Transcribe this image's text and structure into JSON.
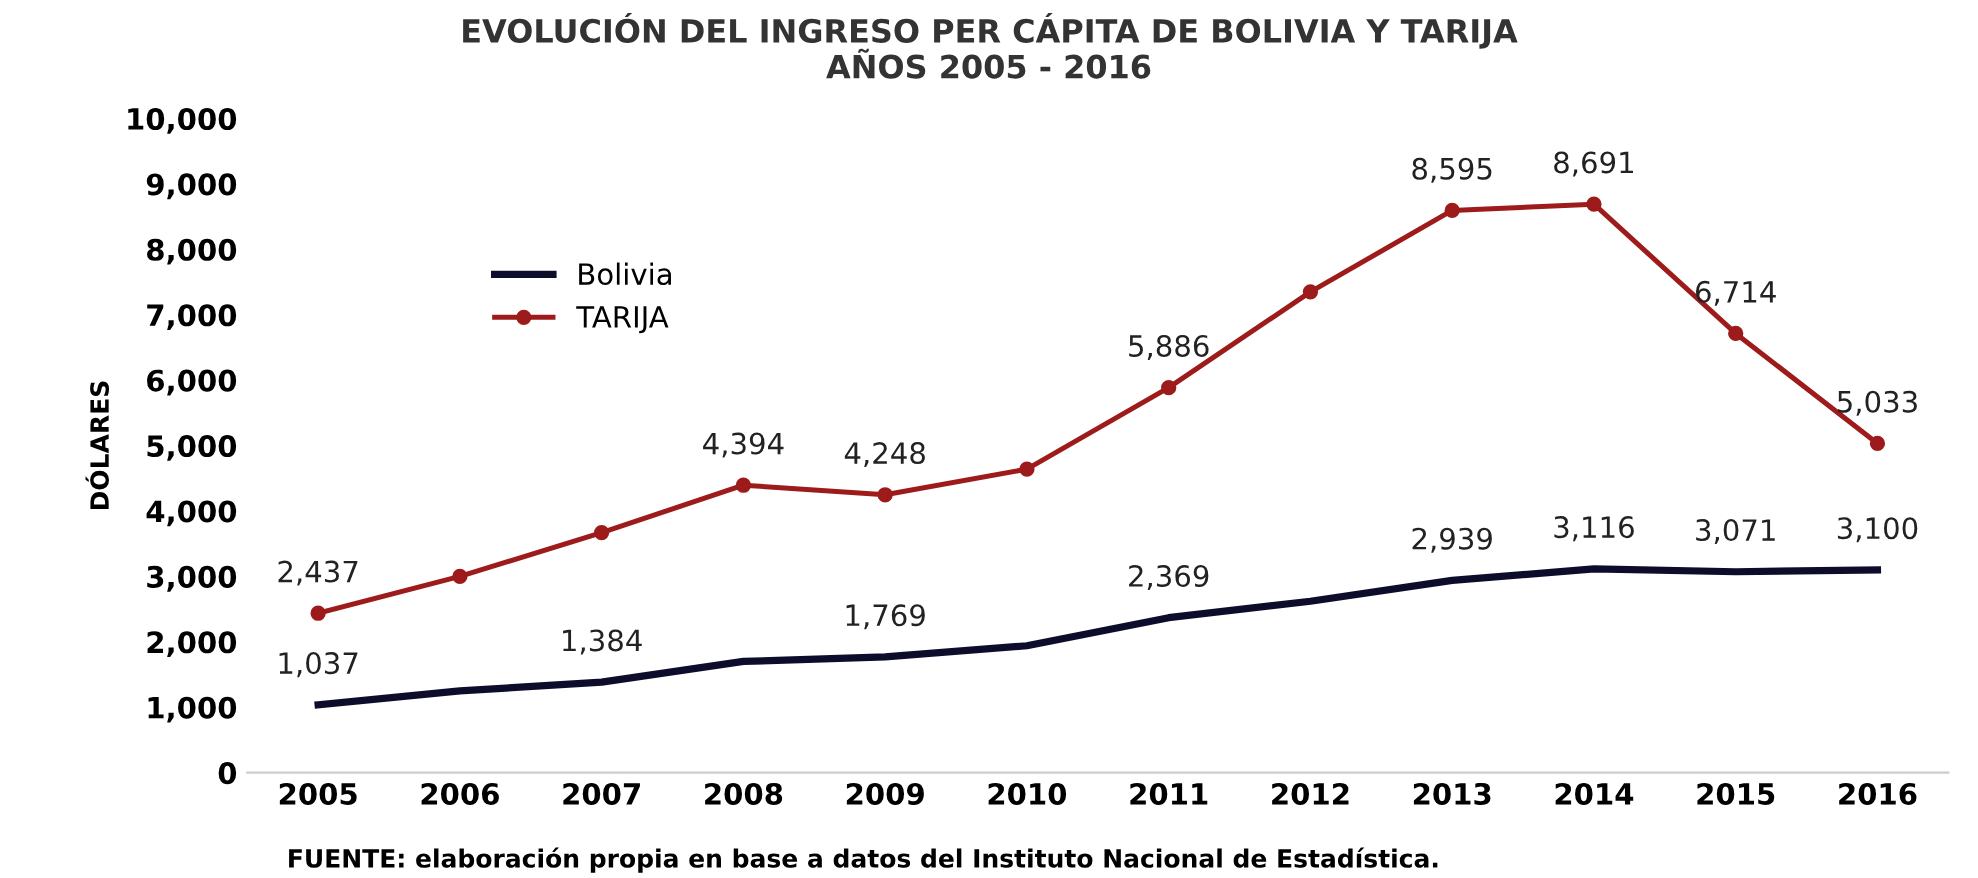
{
  "chart_data": {
    "type": "line",
    "title": "EVOLUCIÓN DEL INGRESO PER CÁPITA DE BOLIVIA Y TARIJA\nAÑOS 2005 - 2016",
    "ylabel": "DÓLARES",
    "categories": [
      "2005",
      "2006",
      "2007",
      "2008",
      "2009",
      "2010",
      "2011",
      "2012",
      "2013",
      "2014",
      "2015",
      "2016"
    ],
    "series": [
      {
        "name": "Bolivia",
        "color": "#0d0d2b",
        "marker": "none",
        "values": [
          1037,
          1250,
          1384,
          1700,
          1769,
          1940,
          2369,
          2620,
          2939,
          3116,
          3071,
          3100
        ],
        "value_labels": [
          "1,037",
          null,
          "1,384",
          null,
          "1,769",
          null,
          "2,369",
          null,
          "2,939",
          "3,116",
          "3,071",
          "3,100"
        ]
      },
      {
        "name": "TARIJA",
        "color": "#9e1b1b",
        "marker": "circle",
        "values": [
          2437,
          3000,
          3670,
          4394,
          4248,
          4640,
          5886,
          7350,
          8595,
          8691,
          6714,
          5033
        ],
        "value_labels": [
          "2,437",
          null,
          null,
          "4,394",
          "4,248",
          null,
          "5,886",
          null,
          "8,595",
          "8,691",
          "6,714",
          "5,033"
        ]
      }
    ],
    "ylim": [
      0,
      10000
    ],
    "yticks": [
      {
        "value": 0,
        "label": "0"
      },
      {
        "value": 1000,
        "label": "1,000"
      },
      {
        "value": 2000,
        "label": "2,000"
      },
      {
        "value": 3000,
        "label": "3,000"
      },
      {
        "value": 4000,
        "label": "4,000"
      },
      {
        "value": 5000,
        "label": "5,000"
      },
      {
        "value": 6000,
        "label": "6,000"
      },
      {
        "value": 7000,
        "label": "7,000"
      },
      {
        "value": 8000,
        "label": "8,000"
      },
      {
        "value": 9000,
        "label": "9,000"
      },
      {
        "value": 10000,
        "label": "10,000"
      }
    ],
    "legend": "top left",
    "annotations": [
      "FUENTE: elaboración propia en base a datos del Instituto Nacional de Estadística."
    ]
  }
}
